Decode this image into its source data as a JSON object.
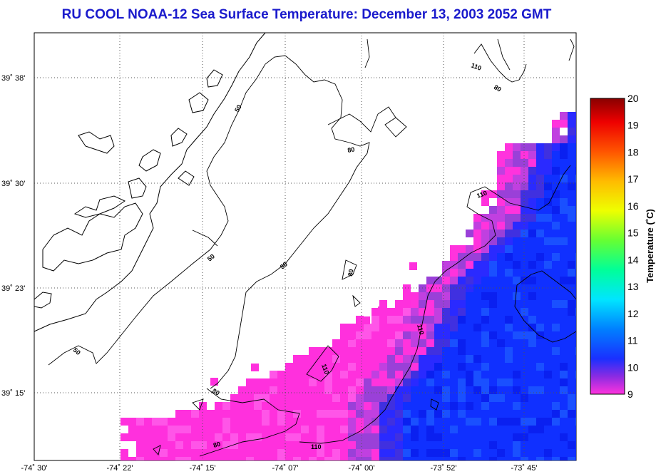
{
  "title": "RU COOL  NOAA-12  Sea Surface Temperature:  December 13, 2003 2052 GMT",
  "map": {
    "lat_labels": [
      "39˚ 38'",
      "39˚ 30'",
      "39˚ 23'",
      "39˚ 15'"
    ],
    "lon_labels": [
      "-74˚ 30'",
      "-74˚ 22'",
      "-74˚ 15'",
      "-74˚ 07'",
      "-74˚ 00'",
      "-73˚ 52'",
      "-73˚ 45'"
    ],
    "contour_labels": [
      "110",
      "80",
      "50",
      "80",
      "110",
      "80",
      "50",
      "80",
      "80",
      "110",
      "50",
      "110",
      "80",
      "80",
      "110"
    ]
  },
  "colorbar": {
    "title": "Temperature (˚C)",
    "ticks": [
      "20",
      "19",
      "18",
      "17",
      "16",
      "15",
      "14",
      "13",
      "12",
      "11",
      "10",
      "9"
    ],
    "range": [
      9,
      20
    ]
  },
  "colors": {
    "title": "#1a1acc",
    "land": "#ffffff",
    "cold": "#1030ff",
    "warm_magenta": "#ff33dd"
  }
}
